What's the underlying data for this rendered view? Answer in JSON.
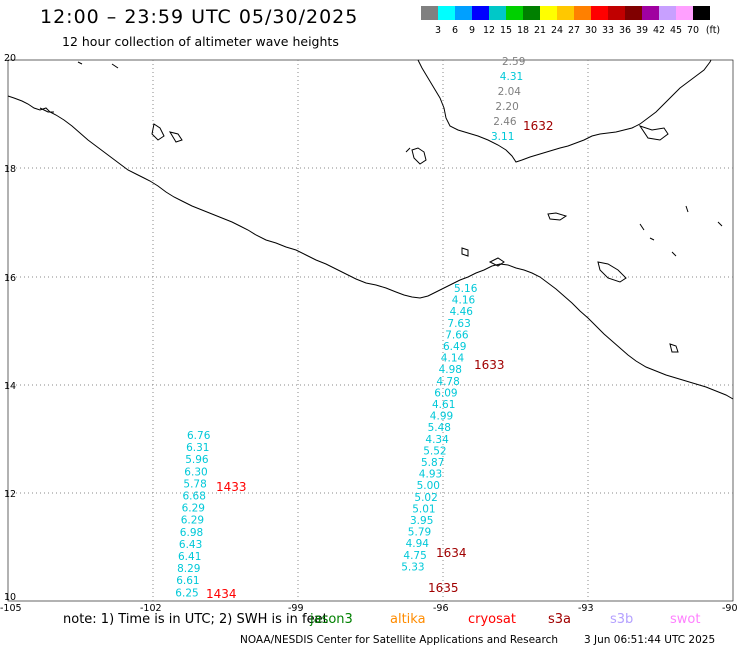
{
  "header": {
    "title": "12:00 – 23:59 UTC 05/30/2025",
    "subtitle": "12 hour collection of altimeter wave heights"
  },
  "color_scale": {
    "labels": [
      "3",
      "6",
      "9",
      "12",
      "15",
      "18",
      "21",
      "24",
      "27",
      "30",
      "33",
      "36",
      "39",
      "42",
      "45",
      "70"
    ],
    "unit": "(ft)",
    "colors": [
      "#808080",
      "#00ffff",
      "#00a0ff",
      "#0000ff",
      "#00c8c8",
      "#00d000",
      "#008000",
      "#ffff00",
      "#ffc800",
      "#ff8000",
      "#ff0000",
      "#c00000",
      "#800000",
      "#a000a0",
      "#c8a0ff",
      "#ffa0ff",
      "#000000"
    ]
  },
  "axes": {
    "lon_labels": [
      "-105",
      "-102",
      "-99",
      "-96",
      "-93",
      "-90"
    ],
    "lat_labels": [
      "20",
      "18",
      "16",
      "14",
      "12",
      "10"
    ]
  },
  "track_labels": {
    "t1632": "1632",
    "t1633": "1633",
    "t1433": "1433",
    "t1434": "1434",
    "t1634": "1634",
    "t1635": "1635"
  },
  "tracks": {
    "north": [
      "2.59",
      "4.31",
      "2.04",
      "2.20",
      "2.46",
      "3.11"
    ],
    "central": [
      "5.16",
      "4.16",
      "4.46",
      "7.63",
      "7.66",
      "6.49",
      "4.14",
      "4.98",
      "4.78",
      "6.09",
      "4.61",
      "4.99",
      "5.48",
      "4.34",
      "5.52",
      "5.87",
      "4.93",
      "5.00",
      "5.02",
      "5.01",
      "3.95",
      "5.79",
      "4.94",
      "4.75",
      "5.33"
    ],
    "west": [
      "6.76",
      "6.31",
      "5.96",
      "6.30",
      "5.78",
      "6.68",
      "6.29",
      "6.29",
      "6.98",
      "6.43",
      "6.41",
      "8.29",
      "6.61",
      "6.25"
    ]
  },
  "footer": {
    "note": "note: 1) Time is in UTC; 2) SWH is in feet",
    "legend": [
      {
        "name": "jason3",
        "color": "#008000"
      },
      {
        "name": "altika",
        "color": "#ff8c00"
      },
      {
        "name": "cryosat",
        "color": "#ff0000"
      },
      {
        "name": "s3a",
        "color": "#a00000"
      },
      {
        "name": "s3b",
        "color": "#b4a0ff"
      },
      {
        "name": "swot",
        "color": "#ff80ff"
      }
    ],
    "credit": "NOAA/NESDIS Center for Satellite Applications and Research",
    "timestamp": "3 Jun 06:51:44 UTC 2025"
  }
}
